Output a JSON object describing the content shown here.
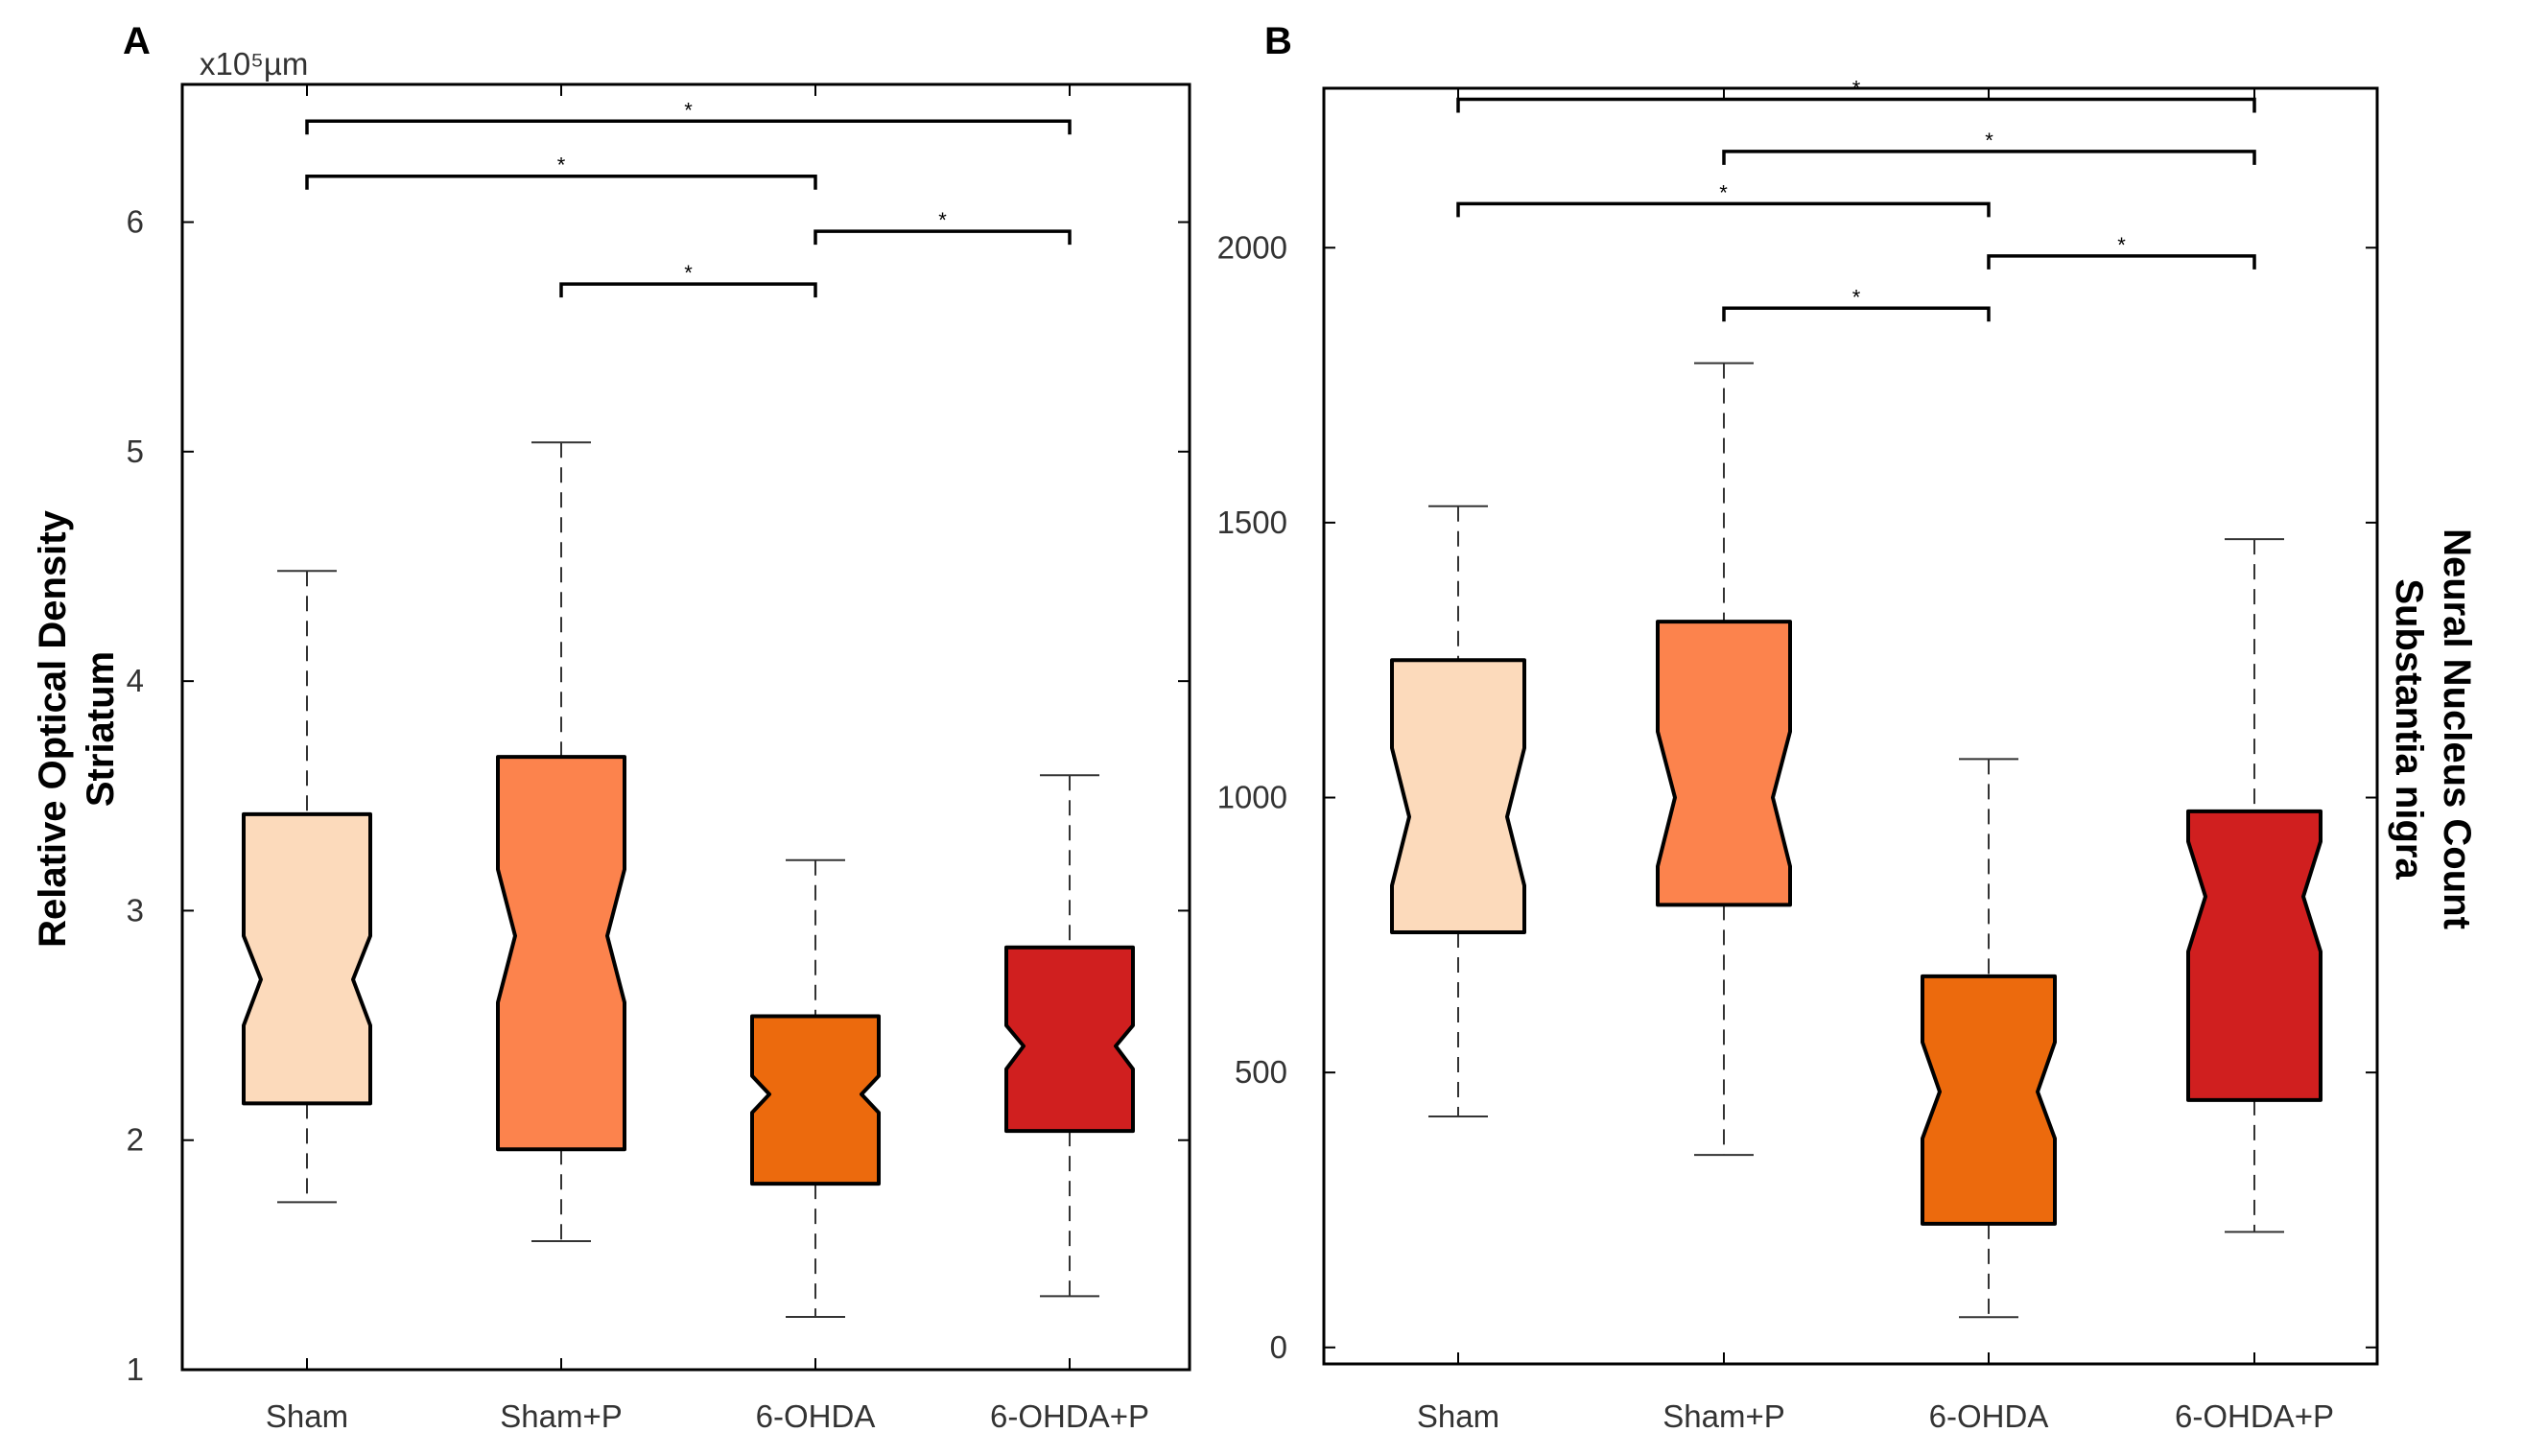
{
  "chart_data": [
    {
      "type": "box",
      "panel": "A",
      "exponent_label": "x10⁵µm",
      "ylabel_lines": [
        "Relative Optical Density",
        "Striatum"
      ],
      "ylim": [
        1,
        6.6
      ],
      "yticks": [
        1,
        2,
        3,
        4,
        5,
        6
      ],
      "categories": [
        "Sham",
        "Sham+P",
        "6-OHDA",
        "6-OHDA+P"
      ],
      "colors": [
        "#fcdabb",
        "#fc834d",
        "#ec6a0d",
        "#d01f1f"
      ],
      "boxes": [
        {
          "min": 1.73,
          "q1": 2.16,
          "notch_low": 2.5,
          "median": 2.7,
          "notch_high": 2.89,
          "q3": 3.42,
          "max": 4.48
        },
        {
          "min": 1.56,
          "q1": 1.96,
          "notch_low": 2.6,
          "median": 2.89,
          "notch_high": 3.18,
          "q3": 3.67,
          "max": 5.04
        },
        {
          "min": 1.23,
          "q1": 1.81,
          "notch_low": 2.12,
          "median": 2.2,
          "notch_high": 2.28,
          "q3": 2.54,
          "max": 3.22
        },
        {
          "min": 1.32,
          "q1": 2.04,
          "notch_low": 2.31,
          "median": 2.41,
          "notch_high": 2.5,
          "q3": 2.84,
          "max": 3.59
        }
      ],
      "significance": [
        {
          "from": 0,
          "to": 3,
          "y": 6.44,
          "label": "*"
        },
        {
          "from": 0,
          "to": 2,
          "y": 6.2,
          "label": "*"
        },
        {
          "from": 2,
          "to": 3,
          "y": 5.96,
          "label": "*"
        },
        {
          "from": 1,
          "to": 2,
          "y": 5.73,
          "label": "*"
        }
      ]
    },
    {
      "type": "box",
      "panel": "B",
      "ylabel_lines": [
        "Neural Nucleus Count",
        "Substantia nigra"
      ],
      "ylim": [
        -30,
        2290
      ],
      "yticks": [
        0,
        500,
        1000,
        1500,
        2000
      ],
      "categories": [
        "Sham",
        "Sham+P",
        "6-OHDA",
        "6-OHDA+P"
      ],
      "colors": [
        "#fcdabb",
        "#fc834d",
        "#ec6a0d",
        "#d01f1f"
      ],
      "boxes": [
        {
          "min": 420,
          "q1": 755,
          "notch_low": 840,
          "median": 965,
          "notch_high": 1090,
          "q3": 1250,
          "max": 1530
        },
        {
          "min": 350,
          "q1": 805,
          "notch_low": 875,
          "median": 1000,
          "notch_high": 1120,
          "q3": 1320,
          "max": 1790
        },
        {
          "min": 55,
          "q1": 225,
          "notch_low": 380,
          "median": 465,
          "notch_high": 555,
          "q3": 675,
          "max": 1070
        },
        {
          "min": 210,
          "q1": 450,
          "notch_low": 720,
          "median": 820,
          "notch_high": 920,
          "q3": 975,
          "max": 1470
        }
      ],
      "significance": [
        {
          "from": 0,
          "to": 3,
          "y": 2270,
          "label": "*"
        },
        {
          "from": 1,
          "to": 3,
          "y": 2175,
          "label": "*"
        },
        {
          "from": 0,
          "to": 2,
          "y": 2080,
          "label": "*"
        },
        {
          "from": 2,
          "to": 3,
          "y": 1985,
          "label": "*"
        },
        {
          "from": 1,
          "to": 2,
          "y": 1890,
          "label": "*"
        }
      ]
    }
  ]
}
